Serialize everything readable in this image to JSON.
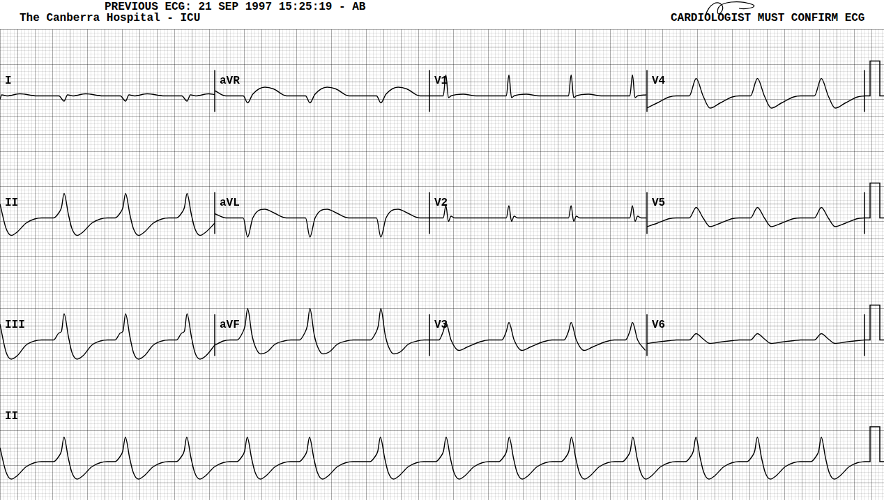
{
  "header": {
    "title": "PREVIOUS ECG: 21 SEP 1997 15:25:19 - AB",
    "subtitle": "The Canberra Hospital - ICU",
    "note": "CARDIOLOGIST MUST CONFIRM ECG"
  },
  "calibration": 1,
  "chart_data": [
    {
      "type": "line",
      "title": "I",
      "color": "#000000",
      "grid": true,
      "tick_labels": false,
      "xlim": [
        0,
        2.48
      ],
      "ylim": [
        -1.75,
        1.75
      ],
      "x": [
        0,
        0.02,
        0.08,
        0.23,
        0.43,
        0.68,
        0.74,
        0.78,
        0.84,
        0.99,
        1.19,
        1.39,
        1.45,
        1.49,
        1.55,
        1.7,
        1.9,
        2.1,
        2.16,
        2.2,
        2.26,
        2.41,
        2.48
      ],
      "values": [
        -0.1,
        0.03,
        0,
        0.06,
        0,
        0,
        -0.15,
        0.03,
        0,
        0.06,
        0,
        0,
        -0.15,
        0.03,
        0,
        0.06,
        0,
        0,
        -0.15,
        0.03,
        0,
        0.06,
        0.04
      ]
    },
    {
      "type": "line",
      "title": "aVR",
      "color": "#000000",
      "grid": true,
      "tick_labels": false,
      "xlim": [
        2.48,
        4.97
      ],
      "ylim": [
        -1.75,
        1.75
      ],
      "x": [
        2.48,
        2.61,
        2.81,
        2.86,
        2.92,
        3.06,
        3.16,
        3.31,
        3.53,
        3.58,
        3.64,
        3.78,
        3.88,
        4.03,
        4.35,
        4.4,
        4.46,
        4.6,
        4.7,
        4.85,
        4.97
      ],
      "values": [
        0.15,
        0,
        0,
        -0.2,
        0.05,
        0.25,
        0.2,
        0,
        0,
        -0.2,
        0.05,
        0.25,
        0.2,
        0,
        0,
        -0.2,
        0.05,
        0.25,
        0.2,
        0,
        0
      ]
    },
    {
      "type": "line",
      "title": "V1",
      "color": "#000000",
      "grid": true,
      "tick_labels": false,
      "xlim": [
        4.97,
        7.48
      ],
      "ylim": [
        -1.75,
        1.75
      ],
      "x": [
        4.97,
        5.13,
        5.16,
        5.19,
        5.22,
        5.36,
        5.51,
        5.86,
        5.89,
        5.92,
        5.95,
        6.09,
        6.24,
        6.58,
        6.61,
        6.64,
        6.67,
        6.81,
        6.96,
        7.29,
        7.32,
        7.35,
        7.38,
        7.48
      ],
      "values": [
        0,
        0,
        0.6,
        -0.05,
        0,
        0.05,
        0,
        0,
        0.6,
        -0.05,
        0,
        0.05,
        0,
        0,
        0.6,
        -0.05,
        0,
        0.05,
        0,
        0,
        0.6,
        -0.05,
        0,
        0.03
      ]
    },
    {
      "type": "line",
      "title": "V4",
      "color": "#000000",
      "grid": true,
      "tick_labels": false,
      "xlim": [
        7.48,
        10
      ],
      "ylim": [
        -1.75,
        1.75
      ],
      "x": [
        7.48,
        7.6,
        7.74,
        7.82,
        7.97,
        8.05,
        8.13,
        8.21,
        8.33,
        8.47,
        8.55,
        8.68,
        8.76,
        8.84,
        8.92,
        9.04,
        9.18,
        9.26,
        9.42,
        9.5,
        9.58,
        9.66,
        9.78,
        9.92,
        10
      ],
      "values": [
        -0.35,
        -0.2,
        -0.03,
        0,
        0,
        0.5,
        0,
        -0.35,
        -0.2,
        -0.03,
        0,
        0,
        0.5,
        0,
        -0.35,
        -0.2,
        -0.03,
        0,
        0,
        0.5,
        0,
        -0.35,
        -0.2,
        -0.03,
        0
      ]
    },
    {
      "type": "line",
      "title": "II",
      "color": "#000000",
      "grid": true,
      "tick_labels": false,
      "xlim": [
        0,
        2.48
      ],
      "ylim": [
        -1.75,
        1.75
      ],
      "x": [
        0,
        0.07,
        0.13,
        0.2,
        0.3,
        0.4,
        0.48,
        0.62,
        0.68,
        0.71,
        0.74,
        0.79,
        0.83,
        0.89,
        0.96,
        1.06,
        1.16,
        1.24,
        1.33,
        1.39,
        1.42,
        1.45,
        1.5,
        1.54,
        1.6,
        1.67,
        1.77,
        1.87,
        1.95,
        2.04,
        2.1,
        2.13,
        2.16,
        2.21,
        2.25,
        2.31,
        2.38,
        2.48
      ],
      "values": [
        0.4,
        -0.3,
        -0.5,
        -0.4,
        -0.15,
        -0.03,
        0,
        0,
        0.15,
        0.3,
        0.7,
        0.1,
        -0.3,
        -0.5,
        -0.4,
        -0.15,
        -0.03,
        0,
        0,
        0.15,
        0.3,
        0.7,
        0.1,
        -0.3,
        -0.5,
        -0.4,
        -0.15,
        -0.03,
        0,
        0,
        0.15,
        0.3,
        0.7,
        0.1,
        -0.3,
        -0.5,
        -0.4,
        -0.15
      ]
    },
    {
      "type": "line",
      "title": "aVL",
      "color": "#000000",
      "grid": true,
      "tick_labels": false,
      "xlim": [
        2.48,
        4.97
      ],
      "ylim": [
        -1.75,
        1.75
      ],
      "x": [
        2.48,
        2.61,
        2.81,
        2.86,
        2.92,
        3.06,
        3.16,
        3.31,
        3.53,
        3.58,
        3.64,
        3.78,
        3.88,
        4.03,
        4.35,
        4.4,
        4.46,
        4.6,
        4.7,
        4.85,
        4.97
      ],
      "values": [
        0.12,
        0,
        0,
        -0.55,
        0,
        0.25,
        0.15,
        0,
        0,
        -0.55,
        0,
        0.25,
        0.15,
        0,
        0,
        -0.55,
        0,
        0.25,
        0.15,
        0,
        0
      ]
    },
    {
      "type": "line",
      "title": "V2",
      "color": "#000000",
      "grid": true,
      "tick_labels": false,
      "xlim": [
        4.97,
        7.48
      ],
      "ylim": [
        -1.75,
        1.75
      ],
      "x": [
        4.97,
        5.13,
        5.16,
        5.19,
        5.22,
        5.26,
        5.51,
        5.86,
        5.89,
        5.92,
        5.95,
        5.99,
        6.24,
        6.58,
        6.61,
        6.64,
        6.67,
        6.71,
        6.96,
        7.29,
        7.32,
        7.35,
        7.38,
        7.42,
        7.48
      ],
      "values": [
        0,
        0,
        0.35,
        -0.1,
        0.05,
        0,
        0,
        0,
        0.35,
        -0.1,
        0.05,
        0,
        0,
        0,
        0.35,
        -0.1,
        0.05,
        0,
        0,
        0,
        0.35,
        -0.1,
        0.05,
        0,
        0
      ]
    },
    {
      "type": "line",
      "title": "V5",
      "color": "#000000",
      "grid": true,
      "tick_labels": false,
      "xlim": [
        7.48,
        10
      ],
      "ylim": [
        -1.75,
        1.75
      ],
      "x": [
        7.48,
        7.6,
        7.74,
        7.82,
        7.97,
        8.05,
        8.13,
        8.21,
        8.33,
        8.47,
        8.55,
        8.68,
        8.76,
        8.84,
        8.92,
        9.04,
        9.18,
        9.26,
        9.42,
        9.5,
        9.58,
        9.66,
        9.78,
        9.92,
        10
      ],
      "values": [
        -0.25,
        -0.15,
        -0.02,
        0,
        0,
        0.3,
        0,
        -0.25,
        -0.15,
        -0.02,
        0,
        0,
        0.3,
        0,
        -0.25,
        -0.15,
        -0.02,
        0,
        0,
        0.3,
        0,
        -0.25,
        -0.15,
        -0.02,
        0
      ]
    },
    {
      "type": "line",
      "title": "III",
      "color": "#000000",
      "grid": true,
      "tick_labels": false,
      "xlim": [
        0,
        2.48
      ],
      "ylim": [
        -1.75,
        1.75
      ],
      "x": [
        0,
        0.07,
        0.13,
        0.2,
        0.3,
        0.4,
        0.48,
        0.62,
        0.68,
        0.71,
        0.74,
        0.79,
        0.83,
        0.89,
        0.96,
        1.06,
        1.16,
        1.24,
        1.33,
        1.39,
        1.42,
        1.45,
        1.5,
        1.54,
        1.6,
        1.67,
        1.77,
        1.87,
        1.95,
        2.04,
        2.1,
        2.13,
        2.16,
        2.21,
        2.25,
        2.31,
        2.38,
        2.48
      ],
      "values": [
        0.45,
        -0.35,
        -0.55,
        -0.45,
        -0.15,
        -0.03,
        0,
        0,
        0.2,
        0.25,
        0.75,
        0.1,
        -0.35,
        -0.55,
        -0.45,
        -0.15,
        -0.03,
        0,
        0,
        0.2,
        0.25,
        0.75,
        0.1,
        -0.35,
        -0.55,
        -0.45,
        -0.15,
        -0.03,
        0,
        0,
        0.2,
        0.25,
        0.75,
        0.1,
        -0.35,
        -0.55,
        -0.45,
        -0.15
      ]
    },
    {
      "type": "line",
      "title": "aVF",
      "color": "#000000",
      "grid": true,
      "tick_labels": false,
      "xlim": [
        2.48,
        4.97
      ],
      "ylim": [
        -1.75,
        1.75
      ],
      "x": [
        2.48,
        2.58,
        2.66,
        2.74,
        2.8,
        2.83,
        2.86,
        2.91,
        2.95,
        3.01,
        3.08,
        3.18,
        3.28,
        3.36,
        3.46,
        3.52,
        3.55,
        3.58,
        3.63,
        3.67,
        3.73,
        3.8,
        3.9,
        4,
        4.08,
        4.28,
        4.34,
        4.37,
        4.4,
        4.45,
        4.49,
        4.55,
        4.62,
        4.72,
        4.82,
        4.9,
        4.97
      ],
      "values": [
        -0.15,
        -0.03,
        0,
        0,
        0.2,
        0.4,
        0.9,
        0.15,
        -0.2,
        -0.4,
        -0.35,
        -0.12,
        -0.03,
        0,
        0,
        0.2,
        0.4,
        0.9,
        0.15,
        -0.2,
        -0.4,
        -0.35,
        -0.12,
        -0.03,
        0,
        0,
        0.2,
        0.4,
        0.9,
        0.15,
        -0.2,
        -0.4,
        -0.35,
        -0.12,
        -0.03,
        0,
        0
      ]
    },
    {
      "type": "line",
      "title": "V3",
      "color": "#000000",
      "grid": true,
      "tick_labels": false,
      "xlim": [
        4.97,
        7.48
      ],
      "ylim": [
        -1.75,
        1.75
      ],
      "x": [
        4.97,
        5.08,
        5.13,
        5.16,
        5.22,
        5.31,
        5.41,
        5.56,
        5.66,
        5.81,
        5.86,
        5.89,
        5.95,
        6.04,
        6.14,
        6.29,
        6.39,
        6.53,
        6.58,
        6.61,
        6.67,
        6.76,
        6.86,
        7.01,
        7.11,
        7.24,
        7.29,
        7.32,
        7.38,
        7.47
      ],
      "values": [
        0,
        0,
        0.25,
        0.5,
        0,
        -0.3,
        -0.2,
        -0.05,
        0,
        0,
        0.25,
        0.5,
        0,
        -0.3,
        -0.2,
        -0.05,
        0,
        0,
        0.25,
        0.5,
        0,
        -0.3,
        -0.2,
        -0.05,
        0,
        0,
        0.25,
        0.5,
        0,
        -0.3
      ]
    },
    {
      "type": "line",
      "title": "V6",
      "color": "#000000",
      "grid": true,
      "tick_labels": false,
      "xlim": [
        7.48,
        10
      ],
      "ylim": [
        -1.75,
        1.75
      ],
      "x": [
        7.48,
        7.6,
        7.74,
        7.82,
        7.97,
        8.05,
        8.13,
        8.21,
        8.33,
        8.47,
        8.55,
        8.68,
        8.76,
        8.84,
        8.92,
        9.04,
        9.18,
        9.26,
        9.42,
        9.5,
        9.58,
        9.66,
        9.78,
        9.92,
        10
      ],
      "values": [
        -0.1,
        -0.06,
        -0.02,
        0,
        0,
        0.18,
        0.03,
        -0.1,
        -0.06,
        -0.02,
        0,
        0,
        0.18,
        0.03,
        -0.1,
        -0.06,
        -0.02,
        0,
        0,
        0.18,
        0.03,
        -0.1,
        -0.06,
        -0.02,
        0
      ]
    },
    {
      "type": "line",
      "title": "II",
      "color": "#000000",
      "grid": true,
      "tick_labels": false,
      "xlim": [
        0,
        10
      ],
      "ylim": [
        -1.1,
        1.74
      ],
      "x": [
        0,
        0.07,
        0.13,
        0.2,
        0.3,
        0.4,
        0.48,
        0.62,
        0.68,
        0.71,
        0.74,
        0.79,
        0.83,
        0.89,
        0.96,
        1.06,
        1.16,
        1.24,
        1.33,
        1.39,
        1.42,
        1.45,
        1.5,
        1.54,
        1.6,
        1.67,
        1.77,
        1.87,
        1.95,
        2.04,
        2.1,
        2.13,
        2.16,
        2.21,
        2.25,
        2.31,
        2.38,
        2.48,
        2.58,
        2.66,
        2.74,
        2.8,
        2.83,
        2.86,
        2.91,
        2.95,
        3.01,
        3.08,
        3.18,
        3.28,
        3.36,
        3.46,
        3.52,
        3.55,
        3.58,
        3.63,
        3.67,
        3.73,
        3.8,
        3.9,
        4,
        4.08,
        4.28,
        4.34,
        4.37,
        4.4,
        4.45,
        4.49,
        4.55,
        4.62,
        4.72,
        4.82,
        4.9,
        5.04,
        5.1,
        5.13,
        5.16,
        5.21,
        5.25,
        5.31,
        5.38,
        5.48,
        5.58,
        5.66,
        5.77,
        5.83,
        5.86,
        5.89,
        5.94,
        5.98,
        6.04,
        6.11,
        6.21,
        6.31,
        6.39,
        6.49,
        6.55,
        6.58,
        6.61,
        6.66,
        6.7,
        6.76,
        6.83,
        6.93,
        7.03,
        7.11,
        7.2,
        7.26,
        7.29,
        7.32,
        7.37,
        7.41,
        7.47,
        7.54,
        7.64,
        7.74,
        7.82,
        7.93,
        7.99,
        8.02,
        8.05,
        8.1,
        8.14,
        8.2,
        8.27,
        8.37,
        8.47,
        8.55,
        8.64,
        8.7,
        8.73,
        8.76,
        8.81,
        8.85,
        8.91,
        8.98,
        9.08,
        9.18,
        9.26,
        9.38,
        9.44,
        9.47,
        9.5,
        9.55,
        9.59,
        9.65,
        9.72,
        9.82,
        9.92,
        10
      ],
      "values": [
        0.4,
        -0.3,
        -0.5,
        -0.4,
        -0.15,
        -0.03,
        0,
        0,
        0.15,
        0.3,
        0.7,
        0.1,
        -0.3,
        -0.5,
        -0.4,
        -0.15,
        -0.03,
        0,
        0,
        0.15,
        0.3,
        0.7,
        0.1,
        -0.3,
        -0.5,
        -0.4,
        -0.15,
        -0.03,
        0,
        0,
        0.15,
        0.3,
        0.7,
        0.1,
        -0.3,
        -0.5,
        -0.4,
        -0.15,
        -0.03,
        0,
        0,
        0.15,
        0.3,
        0.7,
        0.1,
        -0.3,
        -0.5,
        -0.4,
        -0.15,
        -0.03,
        0,
        0,
        0.15,
        0.3,
        0.7,
        0.1,
        -0.3,
        -0.5,
        -0.4,
        -0.15,
        -0.03,
        0,
        0,
        0.15,
        0.3,
        0.7,
        0.1,
        -0.3,
        -0.5,
        -0.4,
        -0.15,
        -0.03,
        0,
        0,
        0.15,
        0.3,
        0.7,
        0.1,
        -0.3,
        -0.5,
        -0.4,
        -0.15,
        -0.03,
        0,
        0,
        0.15,
        0.3,
        0.7,
        0.1,
        -0.3,
        -0.5,
        -0.4,
        -0.15,
        -0.03,
        0,
        0,
        0.15,
        0.3,
        0.7,
        0.1,
        -0.3,
        -0.5,
        -0.4,
        -0.15,
        -0.03,
        0,
        0,
        0.15,
        0.3,
        0.7,
        0.1,
        -0.3,
        -0.5,
        -0.4,
        -0.15,
        -0.03,
        0,
        0,
        0.15,
        0.3,
        0.7,
        0.1,
        -0.3,
        -0.5,
        -0.4,
        -0.15,
        -0.03,
        0,
        0,
        0.15,
        0.3,
        0.7,
        0.1,
        -0.3,
        -0.5,
        -0.4,
        -0.15,
        -0.03,
        0,
        0,
        0.15,
        0.3,
        0.7,
        0.1,
        -0.3,
        -0.5,
        -0.4,
        -0.15,
        -0.03,
        0
      ]
    }
  ]
}
